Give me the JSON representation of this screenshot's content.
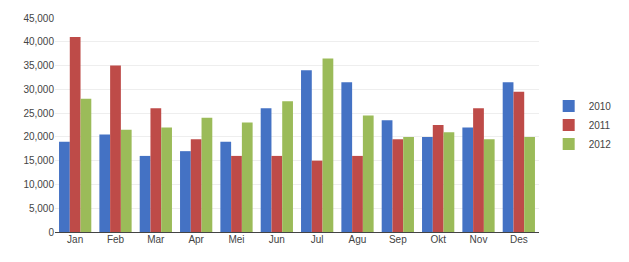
{
  "chart_data": {
    "type": "bar",
    "categories": [
      "Jan",
      "Feb",
      "Mar",
      "Apr",
      "Mei",
      "Jun",
      "Jul",
      "Agu",
      "Sep",
      "Okt",
      "Nov",
      "Des"
    ],
    "series": [
      {
        "name": "2010",
        "color": "#4472C4",
        "values": [
          19000,
          20500,
          16000,
          17000,
          19000,
          26000,
          34000,
          31500,
          23500,
          20000,
          22000,
          31500
        ]
      },
      {
        "name": "2011",
        "color": "#BE4B48",
        "values": [
          41000,
          35000,
          26000,
          19500,
          16000,
          16000,
          15000,
          16000,
          19500,
          22500,
          26000,
          29500
        ]
      },
      {
        "name": "2012",
        "color": "#9BBB59",
        "values": [
          28000,
          21500,
          22000,
          24000,
          23000,
          27500,
          36500,
          24500,
          20000,
          21000,
          19500,
          20000
        ]
      }
    ],
    "ylim": [
      0,
      45000
    ],
    "yticks": [
      0,
      {
        "value": 5000,
        "label": "5,000"
      },
      {
        "value": 10000,
        "label": "10,000"
      },
      {
        "value": 15000,
        "label": "15,000"
      },
      {
        "value": 20000,
        "label": "20,000"
      },
      {
        "value": 25000,
        "label": "25,000"
      },
      {
        "value": 30000,
        "label": "30,000"
      },
      {
        "value": 35000,
        "label": "35,000"
      },
      {
        "value": 40000,
        "label": "40,000"
      },
      {
        "value": 45000,
        "label": "45,000"
      }
    ],
    "grid": true,
    "legend": "right"
  }
}
